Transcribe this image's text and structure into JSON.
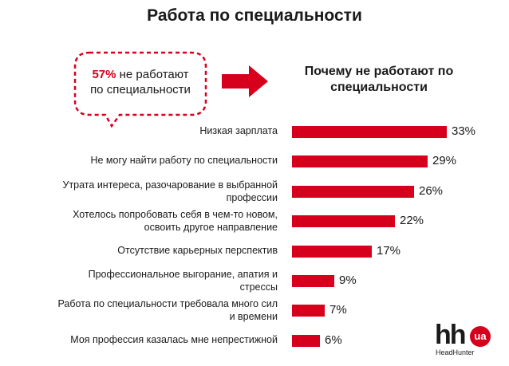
{
  "title": "Работа по специальности",
  "callout": {
    "percent": "57%",
    "text_line1": " не работают",
    "text_line2": "по специальности"
  },
  "subtitle": "Почему не работают по специальности",
  "colors": {
    "accent": "#d6001c",
    "text": "#1a1a1a",
    "background": "#ffffff"
  },
  "icons": {
    "arrow": "right-arrow-icon",
    "logo": "hh-ua-logo"
  },
  "logo": {
    "mark": "hh",
    "badge": "ua",
    "name": "HeadHunter"
  },
  "chart_data": {
    "type": "bar",
    "orientation": "horizontal",
    "categories": [
      "Низкая зарплата",
      "Не могу найти работу по специальности",
      "Утрата интереса, разочарование в выбранной профессии",
      "Хотелось попробовать себя в чем-то новом, освоить другое направление",
      "Отсутствие карьерных перспектив",
      "Профессиональное выгорание, апатия и стрессы",
      "Работа по специальности требовала много сил и времени",
      "Моя профессия казалась мне непрестижной"
    ],
    "label_lines": [
      [
        "Низкая зарплата"
      ],
      [
        "Не могу найти работу по специальности"
      ],
      [
        "Утрата интереса, разочарование в выбранной",
        "профессии"
      ],
      [
        "Хотелось попробовать себя в чем-то новом,",
        "освоить другое направление"
      ],
      [
        "Отсутствие карьерных перспектив"
      ],
      [
        "Профессиональное выгорание, апатия и",
        "стрессы"
      ],
      [
        "Работа по специальности требовала много сил",
        "и времени"
      ],
      [
        "Моя профессия казалась мне непрестижной"
      ]
    ],
    "values": [
      33,
      29,
      26,
      22,
      17,
      9,
      7,
      6
    ],
    "value_labels": [
      "33%",
      "29%",
      "26%",
      "22%",
      "17%",
      "9%",
      "7%",
      "6%"
    ],
    "unit": "%",
    "xlim": [
      0,
      33
    ],
    "grid": false,
    "legend": "none"
  }
}
